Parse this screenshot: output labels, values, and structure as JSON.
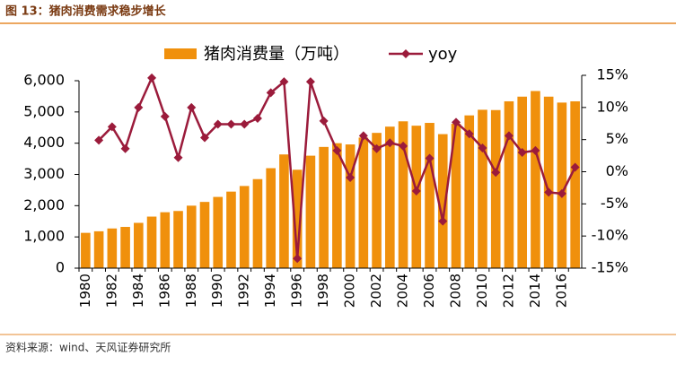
{
  "header": {
    "title": "图 13：猪肉消费需求稳步增长"
  },
  "chart_data": {
    "type": "bar",
    "categories": [
      "1980",
      null,
      "1982",
      null,
      "1984",
      null,
      "1986",
      null,
      "1988",
      null,
      "1990",
      null,
      "1992",
      null,
      "1994",
      null,
      "1996",
      null,
      "1998",
      null,
      "2000",
      null,
      "2002",
      null,
      "2004",
      null,
      "2006",
      null,
      "2008",
      null,
      "2010",
      null,
      "2012",
      null,
      "2014",
      null,
      "2016",
      null
    ],
    "series": [
      {
        "name": "猪肉消费量（万吨）",
        "type": "bar",
        "color": "#f0900c",
        "values": [
          1130,
          1180,
          1270,
          1320,
          1450,
          1650,
          1790,
          1830,
          2000,
          2120,
          2280,
          2450,
          2630,
          2850,
          3200,
          3640,
          3150,
          3600,
          3880,
          4000,
          3960,
          4180,
          4330,
          4530,
          4700,
          4560,
          4650,
          4290,
          4620,
          4890,
          5070,
          5060,
          5340,
          5490,
          5670,
          5490,
          5300,
          5340
        ]
      },
      {
        "name": "yoy",
        "type": "line",
        "axis": "y2",
        "color": "#9b1b3b",
        "values": [
          null,
          4.9,
          7.0,
          3.6,
          10.0,
          14.6,
          8.6,
          2.2,
          10.0,
          5.3,
          7.4,
          7.4,
          7.4,
          8.3,
          12.3,
          14.0,
          -13.5,
          14.0,
          7.9,
          3.3,
          -0.9,
          5.6,
          3.6,
          4.5,
          4.0,
          -3.0,
          2.1,
          -7.7,
          7.7,
          5.9,
          3.7,
          -0.1,
          5.6,
          3.0,
          3.3,
          -3.2,
          -3.4,
          0.7
        ]
      }
    ],
    "ylim": [
      0,
      6000
    ],
    "yticks": [
      0,
      {
        "value": 1000,
        "label": "1,000"
      },
      {
        "value": 2000,
        "label": "2,000"
      },
      {
        "value": 3000,
        "label": "3,000"
      },
      {
        "value": 4000,
        "label": "4,000"
      },
      {
        "value": 5000,
        "label": "5,000"
      },
      {
        "value": 6000,
        "label": "6,000"
      }
    ],
    "y2lim": [
      -15,
      15
    ],
    "y2ticks": [
      {
        "value": -15,
        "label": "-15%"
      },
      {
        "value": -10,
        "label": "-10%"
      },
      {
        "value": -5,
        "label": "-5%"
      },
      {
        "value": 0,
        "label": "0%"
      },
      {
        "value": 5,
        "label": "5%"
      },
      {
        "value": 10,
        "label": "10%"
      },
      {
        "value": 15,
        "label": "15%"
      }
    ],
    "legend": "top"
  },
  "footer": {
    "source": "资料来源：wind、天风证券研究所"
  }
}
